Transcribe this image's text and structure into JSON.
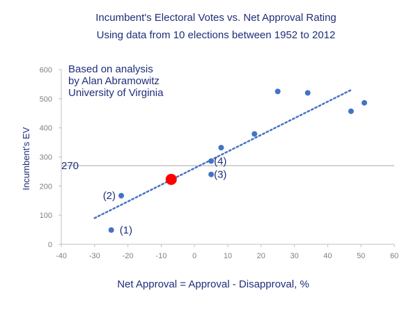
{
  "chart_data": {
    "type": "scatter",
    "title": "Incumbent's Electoral Votes vs. Net Approval Rating",
    "subtitle": "Using data from 10 elections between 1952 to 2012",
    "xlabel": "Net Approval = Approval - Disapproval, %",
    "ylabel": "Incumbent's EV",
    "xlim": [
      -40,
      60
    ],
    "ylim": [
      0,
      600
    ],
    "x_ticks": [
      "-40",
      "-30",
      "-20",
      "-10",
      "0",
      "10",
      "20",
      "30",
      "40",
      "50",
      "60"
    ],
    "y_ticks": [
      "0",
      "100",
      "200",
      "300",
      "400",
      "500",
      "600"
    ],
    "grid": false,
    "annotation_lines": [
      "Based on analysis",
      "by Alan Abramowitz",
      "University of Virginia"
    ],
    "reference_line": {
      "y": 270,
      "label": "270"
    },
    "points": [
      {
        "x": -25,
        "y": 49,
        "label": "(1)"
      },
      {
        "x": -22,
        "y": 167,
        "label": "(2)"
      },
      {
        "x": 5,
        "y": 240,
        "label": "(3)"
      },
      {
        "x": 5,
        "y": 286,
        "label": "(4)"
      },
      {
        "x": 8,
        "y": 332,
        "label": ""
      },
      {
        "x": 18,
        "y": 379,
        "label": ""
      },
      {
        "x": 25,
        "y": 525,
        "label": ""
      },
      {
        "x": 34,
        "y": 520,
        "label": ""
      },
      {
        "x": 47,
        "y": 457,
        "label": ""
      },
      {
        "x": 51,
        "y": 486,
        "label": ""
      }
    ],
    "highlight_point": {
      "x": -7,
      "y": 223
    },
    "trendline": {
      "x": [
        -30,
        47
      ],
      "y": [
        90,
        530
      ]
    },
    "colors": {
      "points": "#4472c4",
      "trendline": "#4472c4",
      "highlight": "#ff0000",
      "text": "#1f2d7a",
      "axis": "#bfbfbf",
      "ticks": "#7f7f7f"
    }
  }
}
